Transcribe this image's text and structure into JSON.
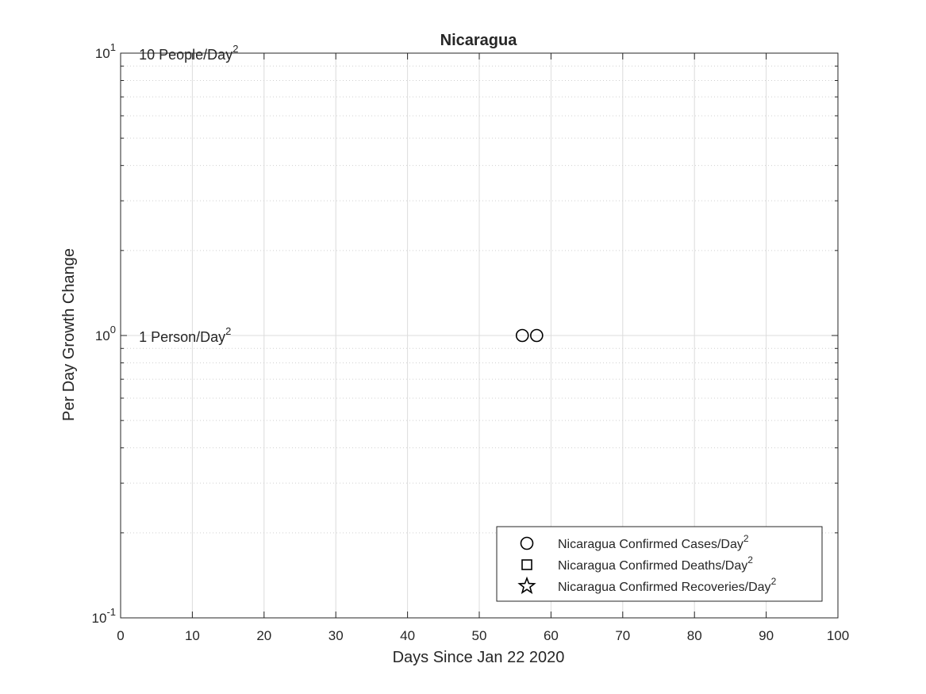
{
  "chart_data": {
    "type": "scatter",
    "title": "Nicaragua",
    "xlabel": "Days Since Jan 22 2020",
    "ylabel": "Per Day Growth Change",
    "xlim": [
      0,
      100
    ],
    "ylim": [
      0.1,
      10
    ],
    "yscale": "log",
    "grid": true,
    "x_ticks": [
      "0",
      "10",
      "20",
      "30",
      "40",
      "50",
      "60",
      "70",
      "80",
      "90",
      "100"
    ],
    "y_ticks": [
      {
        "base": "10",
        "exp": "-1",
        "value": 0.1
      },
      {
        "base": "10",
        "exp": "0",
        "value": 1
      },
      {
        "base": "10",
        "exp": "1",
        "value": 10
      }
    ],
    "annotations": [
      {
        "text": "10 People/Day",
        "sup": "2",
        "x": 3,
        "y": 10
      },
      {
        "text": "1 Person/Day",
        "sup": "2",
        "x": 3,
        "y": 1
      }
    ],
    "legend_position": "bottom-right",
    "series": [
      {
        "name": "Nicaragua Confirmed Cases/Day",
        "sup": "2",
        "marker": "circle",
        "points": [
          {
            "x": 56,
            "y": 1
          },
          {
            "x": 58,
            "y": 1
          }
        ]
      },
      {
        "name": "Nicaragua Confirmed Deaths/Day",
        "sup": "2",
        "marker": "square",
        "points": []
      },
      {
        "name": "Nicaragua Confirmed Recoveries/Day",
        "sup": "2",
        "marker": "star",
        "points": []
      }
    ]
  }
}
